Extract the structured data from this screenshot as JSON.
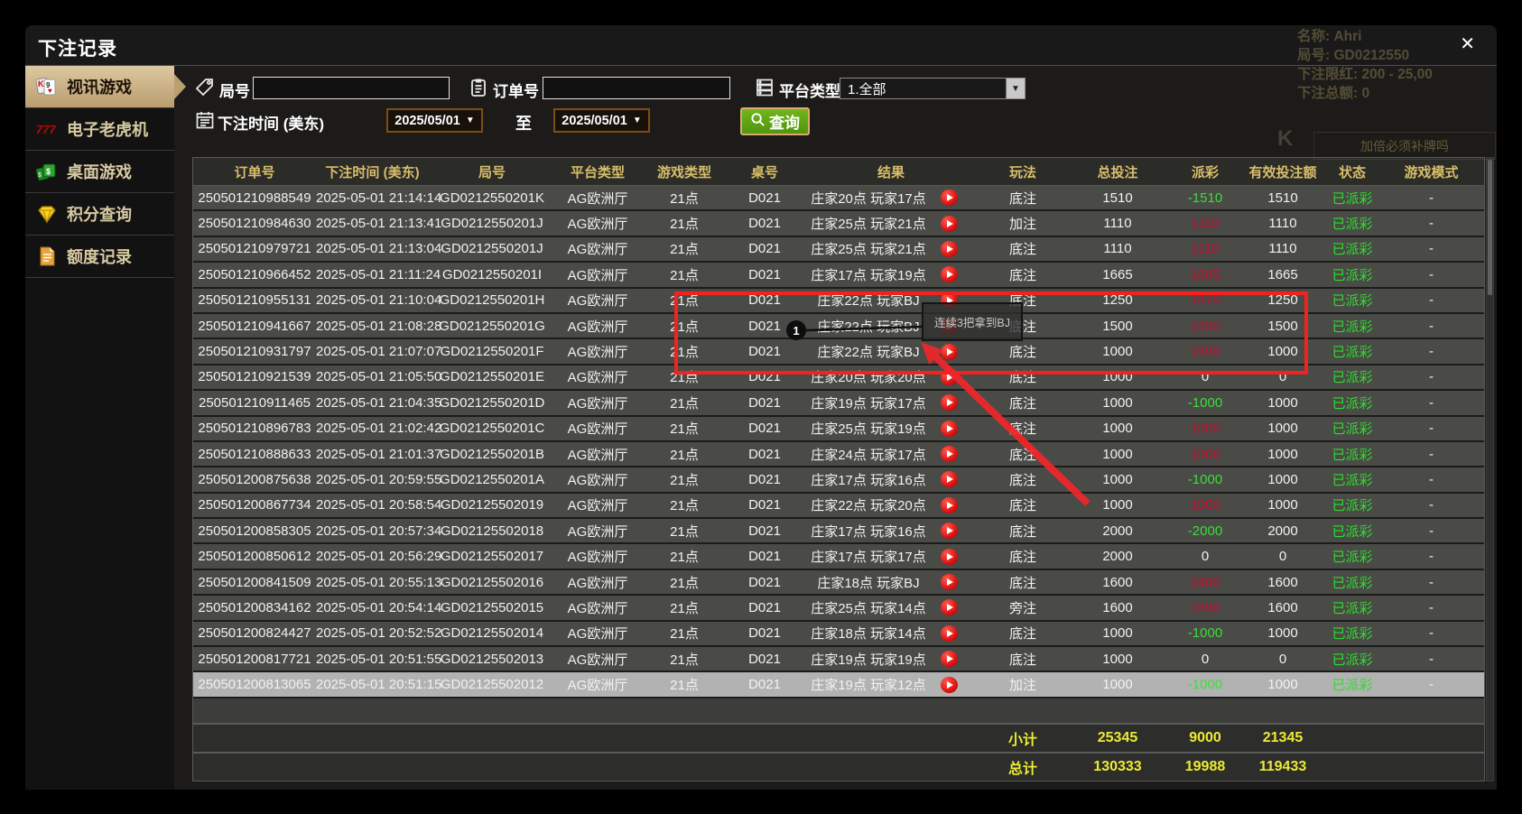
{
  "window": {
    "title": "下注记录",
    "close_icon": "✕"
  },
  "sidebar": {
    "items": [
      {
        "label": "视讯游戏",
        "icon": "video-cards-icon",
        "active": true
      },
      {
        "label": "电子老虎机",
        "icon": "slots-777-icon",
        "active": false
      },
      {
        "label": "桌面游戏",
        "icon": "table-games-icon",
        "active": false
      },
      {
        "label": "积分查询",
        "icon": "points-diamond-icon",
        "active": false
      },
      {
        "label": "额度记录",
        "icon": "quota-document-icon",
        "active": false
      }
    ]
  },
  "filters": {
    "game_no": {
      "label": "局号",
      "value": "",
      "icon": "tag-icon"
    },
    "order_no": {
      "label": "订单号",
      "value": "",
      "icon": "clipboard-icon"
    },
    "platform_type": {
      "label": "平台类型",
      "value": "1.全部",
      "icon": "server-icon",
      "arrow": "▼"
    },
    "bet_time": {
      "label": "下注时间 (美东)",
      "icon": "calendar-icon",
      "from": "2025/05/01",
      "to_word": "至",
      "to": "2025/05/01",
      "arrow": "▼"
    },
    "search_button": {
      "label": "查询",
      "icon": "magnifier-icon"
    }
  },
  "table": {
    "columns": [
      "订单号",
      "下注时间 (美东)",
      "局号",
      "平台类型",
      "游戏类型",
      "桌号",
      "结果",
      "玩法",
      "总投注",
      "派彩",
      "有效投注额",
      "状态",
      "游戏模式"
    ],
    "rows": [
      {
        "order_no": "250501210988549",
        "bet_time": "2025-05-01 21:14:14",
        "game_no": "GD0212550201K",
        "platform": "AG欧洲厅",
        "game_type": "21点",
        "table_no": "D021",
        "result": "庄家20点 玩家17点",
        "play_method": "底注",
        "total_bet": "1510",
        "payout": "-1510",
        "valid_bet": "1510",
        "status": "已派彩",
        "mode": "-"
      },
      {
        "order_no": "250501210984630",
        "bet_time": "2025-05-01 21:13:41",
        "game_no": "GD0212550201J",
        "platform": "AG欧洲厅",
        "game_type": "21点",
        "table_no": "D021",
        "result": "庄家25点 玩家21点",
        "play_method": "加注",
        "total_bet": "1110",
        "payout": "1110",
        "valid_bet": "1110",
        "status": "已派彩",
        "mode": "-"
      },
      {
        "order_no": "250501210979721",
        "bet_time": "2025-05-01 21:13:04",
        "game_no": "GD0212550201J",
        "platform": "AG欧洲厅",
        "game_type": "21点",
        "table_no": "D021",
        "result": "庄家25点 玩家21点",
        "play_method": "底注",
        "total_bet": "1110",
        "payout": "1110",
        "valid_bet": "1110",
        "status": "已派彩",
        "mode": "-"
      },
      {
        "order_no": "250501210966452",
        "bet_time": "2025-05-01 21:11:24",
        "game_no": "GD0212550201I",
        "platform": "AG欧洲厅",
        "game_type": "21点",
        "table_no": "D021",
        "result": "庄家17点 玩家19点",
        "play_method": "底注",
        "total_bet": "1665",
        "payout": "1665",
        "valid_bet": "1665",
        "status": "已派彩",
        "mode": "-"
      },
      {
        "order_no": "250501210955131",
        "bet_time": "2025-05-01 21:10:04",
        "game_no": "GD0212550201H",
        "platform": "AG欧洲厅",
        "game_type": "21点",
        "table_no": "D021",
        "result": "庄家22点 玩家BJ",
        "play_method": "底注",
        "total_bet": "1250",
        "payout": "1875",
        "valid_bet": "1250",
        "status": "已派彩",
        "mode": "-"
      },
      {
        "order_no": "250501210941667",
        "bet_time": "2025-05-01 21:08:28",
        "game_no": "GD0212550201G",
        "platform": "AG欧洲厅",
        "game_type": "21点",
        "table_no": "D021",
        "result": "庄家22点 玩家BJ",
        "play_method": "底注",
        "total_bet": "1500",
        "payout": "2250",
        "valid_bet": "1500",
        "status": "已派彩",
        "mode": "-"
      },
      {
        "order_no": "250501210931797",
        "bet_time": "2025-05-01 21:07:07",
        "game_no": "GD0212550201F",
        "platform": "AG欧洲厅",
        "game_type": "21点",
        "table_no": "D021",
        "result": "庄家22点 玩家BJ",
        "play_method": "底注",
        "total_bet": "1000",
        "payout": "1500",
        "valid_bet": "1000",
        "status": "已派彩",
        "mode": "-"
      },
      {
        "order_no": "250501210921539",
        "bet_time": "2025-05-01 21:05:50",
        "game_no": "GD0212550201E",
        "platform": "AG欧洲厅",
        "game_type": "21点",
        "table_no": "D021",
        "result": "庄家20点 玩家20点",
        "play_method": "底注",
        "total_bet": "1000",
        "payout": "0",
        "valid_bet": "0",
        "status": "已派彩",
        "mode": "-"
      },
      {
        "order_no": "250501210911465",
        "bet_time": "2025-05-01 21:04:35",
        "game_no": "GD0212550201D",
        "platform": "AG欧洲厅",
        "game_type": "21点",
        "table_no": "D021",
        "result": "庄家19点 玩家17点",
        "play_method": "底注",
        "total_bet": "1000",
        "payout": "-1000",
        "valid_bet": "1000",
        "status": "已派彩",
        "mode": "-"
      },
      {
        "order_no": "250501210896783",
        "bet_time": "2025-05-01 21:02:42",
        "game_no": "GD0212550201C",
        "platform": "AG欧洲厅",
        "game_type": "21点",
        "table_no": "D021",
        "result": "庄家25点 玩家19点",
        "play_method": "底注",
        "total_bet": "1000",
        "payout": "1000",
        "valid_bet": "1000",
        "status": "已派彩",
        "mode": "-"
      },
      {
        "order_no": "250501210888633",
        "bet_time": "2025-05-01 21:01:37",
        "game_no": "GD0212550201B",
        "platform": "AG欧洲厅",
        "game_type": "21点",
        "table_no": "D021",
        "result": "庄家24点 玩家17点",
        "play_method": "底注",
        "total_bet": "1000",
        "payout": "1000",
        "valid_bet": "1000",
        "status": "已派彩",
        "mode": "-"
      },
      {
        "order_no": "250501200875638",
        "bet_time": "2025-05-01 20:59:55",
        "game_no": "GD0212550201A",
        "platform": "AG欧洲厅",
        "game_type": "21点",
        "table_no": "D021",
        "result": "庄家17点 玩家16点",
        "play_method": "底注",
        "total_bet": "1000",
        "payout": "-1000",
        "valid_bet": "1000",
        "status": "已派彩",
        "mode": "-"
      },
      {
        "order_no": "250501200867734",
        "bet_time": "2025-05-01 20:58:54",
        "game_no": "GD02125502019",
        "platform": "AG欧洲厅",
        "game_type": "21点",
        "table_no": "D021",
        "result": "庄家22点 玩家20点",
        "play_method": "底注",
        "total_bet": "1000",
        "payout": "1000",
        "valid_bet": "1000",
        "status": "已派彩",
        "mode": "-"
      },
      {
        "order_no": "250501200858305",
        "bet_time": "2025-05-01 20:57:34",
        "game_no": "GD02125502018",
        "platform": "AG欧洲厅",
        "game_type": "21点",
        "table_no": "D021",
        "result": "庄家17点 玩家16点",
        "play_method": "底注",
        "total_bet": "2000",
        "payout": "-2000",
        "valid_bet": "2000",
        "status": "已派彩",
        "mode": "-"
      },
      {
        "order_no": "250501200850612",
        "bet_time": "2025-05-01 20:56:29",
        "game_no": "GD02125502017",
        "platform": "AG欧洲厅",
        "game_type": "21点",
        "table_no": "D021",
        "result": "庄家17点 玩家17点",
        "play_method": "底注",
        "total_bet": "2000",
        "payout": "0",
        "valid_bet": "0",
        "status": "已派彩",
        "mode": "-"
      },
      {
        "order_no": "250501200841509",
        "bet_time": "2025-05-01 20:55:13",
        "game_no": "GD02125502016",
        "platform": "AG欧洲厅",
        "game_type": "21点",
        "table_no": "D021",
        "result": "庄家18点 玩家BJ",
        "play_method": "底注",
        "total_bet": "1600",
        "payout": "2400",
        "valid_bet": "1600",
        "status": "已派彩",
        "mode": "-"
      },
      {
        "order_no": "250501200834162",
        "bet_time": "2025-05-01 20:54:14",
        "game_no": "GD02125502015",
        "platform": "AG欧洲厅",
        "game_type": "21点",
        "table_no": "D021",
        "result": "庄家25点 玩家14点",
        "play_method": "旁注",
        "total_bet": "1600",
        "payout": "1600",
        "valid_bet": "1600",
        "status": "已派彩",
        "mode": "-"
      },
      {
        "order_no": "250501200824427",
        "bet_time": "2025-05-01 20:52:52",
        "game_no": "GD02125502014",
        "platform": "AG欧洲厅",
        "game_type": "21点",
        "table_no": "D021",
        "result": "庄家18点 玩家14点",
        "play_method": "底注",
        "total_bet": "1000",
        "payout": "-1000",
        "valid_bet": "1000",
        "status": "已派彩",
        "mode": "-"
      },
      {
        "order_no": "250501200817721",
        "bet_time": "2025-05-01 20:51:55",
        "game_no": "GD02125502013",
        "platform": "AG欧洲厅",
        "game_type": "21点",
        "table_no": "D021",
        "result": "庄家19点 玩家19点",
        "play_method": "底注",
        "total_bet": "1000",
        "payout": "0",
        "valid_bet": "0",
        "status": "已派彩",
        "mode": "-"
      },
      {
        "order_no": "250501200813065",
        "bet_time": "2025-05-01 20:51:15",
        "game_no": "GD02125502012",
        "platform": "AG欧洲厅",
        "game_type": "21点",
        "table_no": "D021",
        "result": "庄家19点 玩家12点",
        "play_method": "加注",
        "total_bet": "1000",
        "payout": "-1000",
        "valid_bet": "1000",
        "status": "已派彩",
        "mode": "-",
        "selected": true
      }
    ],
    "footer": {
      "subtotal_label": "小计",
      "subtotal": [
        "25345",
        "9000",
        "21345"
      ],
      "total_label": "总计",
      "total": [
        "130333",
        "19988",
        "119433"
      ]
    }
  },
  "annotation": {
    "badge": "1",
    "tooltip": "连续3把拿到BJ"
  },
  "background_hints": {
    "lines": [
      "名称: Ahri",
      "局号: GD0212550",
      "下注限红: 200 - 25,00",
      "下注总额: 0"
    ],
    "card_letter": "K",
    "prompt": "加倍必须补牌吗"
  },
  "colors": {
    "win_red": "#c11030",
    "loss_green": "#3ddd3d",
    "status_green": "#2edc2e",
    "subtotal_yellow": "#eceb35",
    "header_gold": "#d9be6a",
    "annotation_red": "#f3221f"
  }
}
